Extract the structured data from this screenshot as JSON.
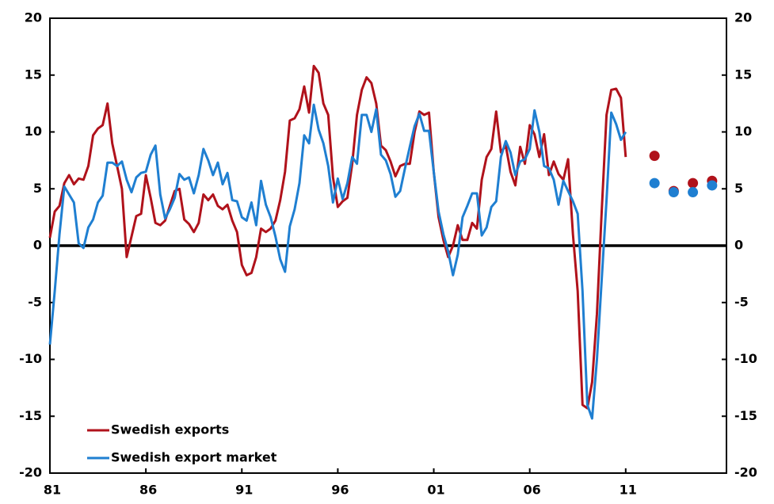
{
  "chart_data": {
    "type": "line",
    "x": [
      1981,
      1981.25,
      1981.5,
      1981.75,
      1982,
      1982.25,
      1982.5,
      1982.75,
      1983,
      1983.25,
      1983.5,
      1983.75,
      1984,
      1984.25,
      1984.5,
      1984.75,
      1985,
      1985.25,
      1985.5,
      1985.75,
      1986,
      1986.25,
      1986.5,
      1986.75,
      1987,
      1987.25,
      1987.5,
      1987.75,
      1988,
      1988.25,
      1988.5,
      1988.75,
      1989,
      1989.25,
      1989.5,
      1989.75,
      1990,
      1990.25,
      1990.5,
      1990.75,
      1991,
      1991.25,
      1991.5,
      1991.75,
      1992,
      1992.25,
      1992.5,
      1992.75,
      1993,
      1993.25,
      1993.5,
      1993.75,
      1994,
      1994.25,
      1994.5,
      1994.75,
      1995,
      1995.25,
      1995.5,
      1995.75,
      1996,
      1996.25,
      1996.5,
      1996.75,
      1997,
      1997.25,
      1997.5,
      1997.75,
      1998,
      1998.25,
      1998.5,
      1998.75,
      1999,
      1999.25,
      1999.5,
      1999.75,
      2000,
      2000.25,
      2000.5,
      2000.75,
      2001,
      2001.25,
      2001.5,
      2001.75,
      2002,
      2002.25,
      2002.5,
      2002.75,
      2003,
      2003.25,
      2003.5,
      2003.75,
      2004,
      2004.25,
      2004.5,
      2004.75,
      2005,
      2005.25,
      2005.5,
      2005.75,
      2006,
      2006.25,
      2006.5,
      2006.75,
      2007,
      2007.25,
      2007.5,
      2007.75,
      2008,
      2008.25,
      2008.5,
      2008.75,
      2009,
      2009.25,
      2009.5,
      2009.75,
      2010,
      2010.25,
      2010.5,
      2010.75,
      2011,
      2011.25,
      2011.5,
      2011.75
    ],
    "forecast_x": [
      2012.5,
      2013.5,
      2014.5,
      2015.5
    ],
    "series": [
      {
        "name": "Swedish exports",
        "color": "#b0121b",
        "values": [
          0.7,
          3,
          3.5,
          5.5,
          6.2,
          5.4,
          5.9,
          5.8,
          7,
          9.7,
          10.3,
          10.6,
          12.5,
          9,
          7,
          5,
          -1,
          0.8,
          2.6,
          2.8,
          6.2,
          4.2,
          2,
          1.8,
          2.2,
          3.5,
          4.8,
          5,
          2.3,
          1.9,
          1.2,
          2,
          4.5,
          4,
          4.5,
          3.5,
          3.2,
          3.6,
          2.2,
          1.2,
          -1.7,
          -2.6,
          -2.4,
          -1,
          1.5,
          1.2,
          1.5,
          2.2,
          4,
          6.5,
          11,
          11.2,
          12,
          14,
          11.7,
          15.8,
          15.2,
          12.5,
          11.5,
          6,
          3.4,
          3.9,
          4.2,
          7.2,
          11.5,
          13.7,
          14.8,
          14.3,
          12.5,
          8.8,
          8.4,
          7.4,
          6.1,
          7,
          7.2,
          7.2,
          10,
          11.8,
          11.5,
          11.7,
          6.5,
          2.5,
          0.5,
          -1,
          0,
          1.8,
          0.5,
          0.5,
          2,
          1.5,
          5.8,
          7.8,
          8.5,
          11.8,
          8.2,
          8.8,
          6.5,
          5.3,
          8.7,
          7.2,
          10.6,
          9.8,
          7.8,
          9.8,
          6.2,
          7.4,
          6.3,
          5.8,
          7.6,
          1,
          -4,
          -14,
          -14.3,
          -12,
          -6,
          3,
          11.5,
          13.7,
          13.8,
          13,
          7.8,
          null,
          null,
          null
        ],
        "forecast_values": [
          7.9,
          4.8,
          5.5,
          5.7
        ]
      },
      {
        "name": "Swedish export market",
        "color": "#1f7fd1",
        "values": [
          -8.7,
          -4,
          1,
          5.2,
          4.5,
          3.8,
          0.2,
          -0.2,
          1.6,
          2.3,
          3.8,
          4.4,
          7.3,
          7.3,
          7,
          7.4,
          5.8,
          4.7,
          6,
          6.4,
          6.5,
          8,
          8.8,
          4.5,
          2.4,
          3.2,
          4.2,
          6.3,
          5.8,
          6,
          4.6,
          6.2,
          8.5,
          7.5,
          6.2,
          7.3,
          5.4,
          6.4,
          4,
          3.9,
          2.5,
          2.2,
          3.8,
          1.8,
          5.7,
          3.6,
          2.5,
          0.8,
          -1.2,
          -2.3,
          1.7,
          3.2,
          5.5,
          9.7,
          9,
          12.4,
          10.2,
          9,
          7,
          3.8,
          5.9,
          4.1,
          5.5,
          7.8,
          7.2,
          11.5,
          11.5,
          10,
          12,
          8,
          7.5,
          6.3,
          4.3,
          4.8,
          6.8,
          8.7,
          10.5,
          11.6,
          10.1,
          10.1,
          6.5,
          3,
          1,
          -0.5,
          -2.6,
          -0.8,
          2.5,
          3.5,
          4.6,
          4.6,
          0.9,
          1.6,
          3.4,
          3.9,
          7.8,
          9.2,
          8.2,
          6.2,
          7.4,
          7.6,
          8.5,
          11.9,
          10,
          7,
          6.8,
          5.8,
          3.6,
          5.7,
          4.8,
          3.9,
          2.8,
          -4,
          -14,
          -15.2,
          -10,
          -3,
          4,
          11.7,
          10.7,
          9.3,
          10,
          null,
          null,
          null
        ],
        "forecast_values": [
          5.5,
          4.7,
          4.7,
          5.3
        ]
      }
    ],
    "xlim": [
      1981,
      2016.25
    ],
    "xticks": [
      {
        "value": 1981,
        "label": "81"
      },
      {
        "value": 1986,
        "label": "86"
      },
      {
        "value": 1991,
        "label": "91"
      },
      {
        "value": 1996,
        "label": "96"
      },
      {
        "value": 2001,
        "label": "01"
      },
      {
        "value": 2006,
        "label": "06"
      },
      {
        "value": 2011,
        "label": "11"
      }
    ],
    "ylim": [
      -20,
      20
    ],
    "yticks": [
      -20,
      -15,
      -10,
      -5,
      0,
      5,
      10,
      15,
      20
    ],
    "y2lim": [
      -20,
      20
    ],
    "y2ticks": [
      -20,
      -15,
      -10,
      -5,
      0,
      5,
      10,
      15,
      20
    ],
    "legend": "lower left"
  }
}
